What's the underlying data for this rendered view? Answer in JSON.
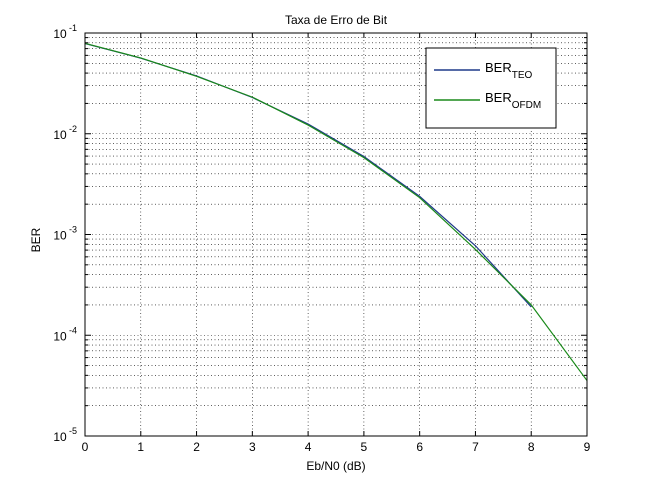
{
  "chart_data": {
    "type": "line",
    "title": "Taxa de Erro de Bit",
    "xlabel": "Eb/N0 (dB)",
    "ylabel": "BER",
    "xlim": [
      0,
      9
    ],
    "ylim": [
      1e-05,
      0.1
    ],
    "yscale": "log",
    "grid": "major and minor, dotted",
    "legend_position": "top-right",
    "x_ticks": [
      "0",
      "1",
      "2",
      "3",
      "4",
      "5",
      "6",
      "7",
      "8",
      "9"
    ],
    "y_ticks": [
      {
        "base": "10",
        "exp": "-5",
        "value": 1e-05
      },
      {
        "base": "10",
        "exp": "-4",
        "value": 0.0001
      },
      {
        "base": "10",
        "exp": "-3",
        "value": 0.001
      },
      {
        "base": "10",
        "exp": "-2",
        "value": 0.01
      },
      {
        "base": "10",
        "exp": "-1",
        "value": 0.1
      }
    ],
    "series": [
      {
        "name": "BER",
        "name_sub": "TEO",
        "color": "#1f3a8a",
        "x": [
          0,
          1,
          2,
          3,
          4,
          5,
          6,
          7,
          8
        ],
        "y": [
          0.0786,
          0.0563,
          0.0375,
          0.0229,
          0.0125,
          0.00595,
          0.00239,
          0.000773,
          0.000191
        ]
      },
      {
        "name": "BER",
        "name_sub": "OFDM",
        "color": "#1a8a1a",
        "x": [
          0,
          1,
          2,
          3,
          4,
          5,
          6,
          7,
          8,
          9
        ],
        "y": [
          0.079,
          0.0565,
          0.0372,
          0.0231,
          0.0122,
          0.0058,
          0.00232,
          0.00071,
          0.0002,
          3.55e-05
        ]
      }
    ]
  }
}
